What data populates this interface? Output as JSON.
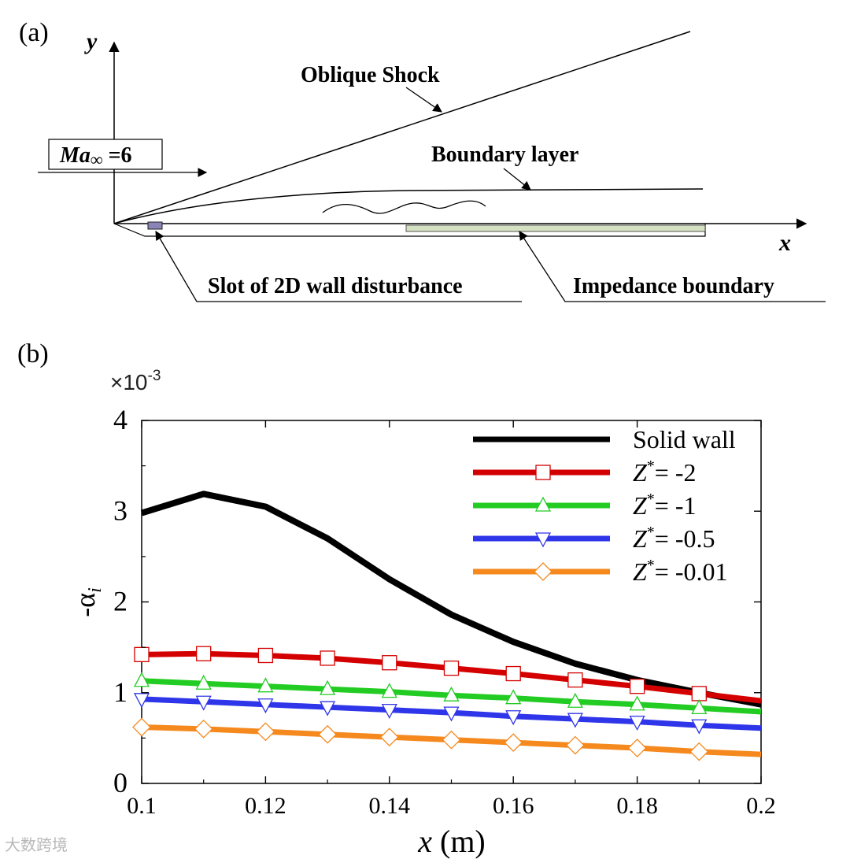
{
  "panel_a": {
    "label": "(a)",
    "y_axis": "y",
    "x_axis": "x",
    "mach_prefix": "Ma",
    "mach_symbol": "∞",
    "mach_value": " =6",
    "oblique_shock": "Oblique Shock",
    "boundary_layer": "Boundary layer",
    "slot": "Slot of 2D wall disturbance",
    "impedance": "Impedance boundary"
  },
  "panel_b": {
    "label": "(b)",
    "multiplier": "×10",
    "multiplier_exp": "-3",
    "ylabel_main": "-α",
    "ylabel_sub": "i",
    "xlabel_main": "x",
    "xlabel_unit": " (m)"
  },
  "watermark": "大数跨境",
  "chart_data": {
    "type": "line",
    "title": "",
    "xlabel": "x (m)",
    "ylabel": "-αi",
    "y_multiplier": "×10-3",
    "xlim": [
      0.1,
      0.2
    ],
    "ylim": [
      0,
      4
    ],
    "xticks": [
      0.1,
      0.12,
      0.14,
      0.16,
      0.18,
      0.2
    ],
    "xtick_labels": [
      "0.1",
      "0.12",
      "0.14",
      "0.16",
      "0.18",
      "0.2"
    ],
    "yticks": [
      0,
      1,
      2,
      3,
      4
    ],
    "ytick_labels": [
      "0",
      "1",
      "2",
      "3",
      "4"
    ],
    "legend_position": "top-right",
    "x": [
      0.1,
      0.11,
      0.12,
      0.13,
      0.14,
      0.15,
      0.16,
      0.17,
      0.18,
      0.19,
      0.2
    ],
    "series": [
      {
        "name": "Solid wall",
        "z_prefix": "",
        "z_value": "",
        "color": "#000000",
        "marker": "none",
        "values": [
          2.98,
          3.19,
          3.05,
          2.7,
          2.25,
          1.86,
          1.56,
          1.32,
          1.14,
          1.0,
          0.87
        ]
      },
      {
        "name": "Z*= -2",
        "z_prefix": "Z",
        "z_value": "= -2",
        "color": "#d40000",
        "marker": "square",
        "values": [
          1.42,
          1.43,
          1.41,
          1.38,
          1.33,
          1.27,
          1.21,
          1.14,
          1.07,
          0.99,
          0.91
        ]
      },
      {
        "name": "Z*= -1",
        "z_prefix": "Z",
        "z_value": "= -1",
        "color": "#22cc22",
        "marker": "triangle-up",
        "values": [
          1.13,
          1.1,
          1.07,
          1.04,
          1.01,
          0.97,
          0.94,
          0.9,
          0.87,
          0.83,
          0.79
        ]
      },
      {
        "name": "Z*= -0.5",
        "z_prefix": "Z",
        "z_value": "= -0.5",
        "color": "#2f35e8",
        "marker": "triangle-down",
        "values": [
          0.93,
          0.9,
          0.87,
          0.84,
          0.81,
          0.78,
          0.74,
          0.71,
          0.68,
          0.64,
          0.61
        ]
      },
      {
        "name": "Z*= -0.01",
        "z_prefix": "Z",
        "z_value": "= -0.01",
        "color": "#f5891e",
        "marker": "diamond",
        "values": [
          0.62,
          0.6,
          0.57,
          0.54,
          0.51,
          0.48,
          0.45,
          0.42,
          0.39,
          0.35,
          0.32
        ]
      }
    ]
  }
}
